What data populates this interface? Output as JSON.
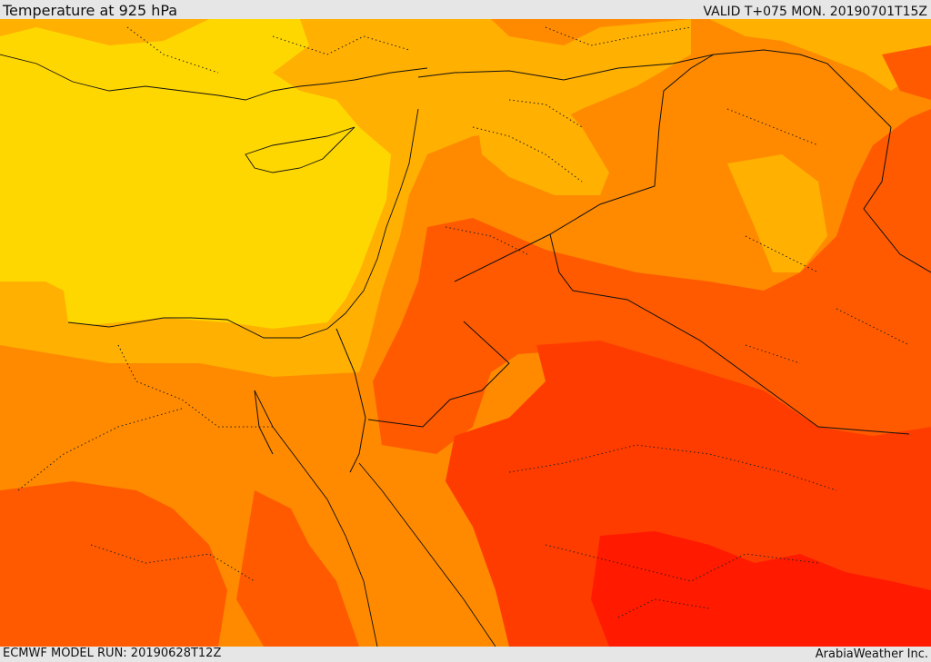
{
  "header": {
    "title": "Temperature at 925 hPa",
    "valid": "VALID T+075 MON. 20190701T15Z"
  },
  "footer": {
    "model_run": "ECMWF MODEL RUN: 20190628T12Z",
    "credit": "ArabiaWeather Inc."
  },
  "map": {
    "field": "temperature",
    "level": "925 hPa",
    "palette": {
      "yellow": "#ffd700",
      "light_orange": "#ffb000",
      "orange": "#ff8a00",
      "deep_orange": "#ff5a00",
      "red_orange": "#ff3c00",
      "red": "#ff1a00"
    }
  }
}
